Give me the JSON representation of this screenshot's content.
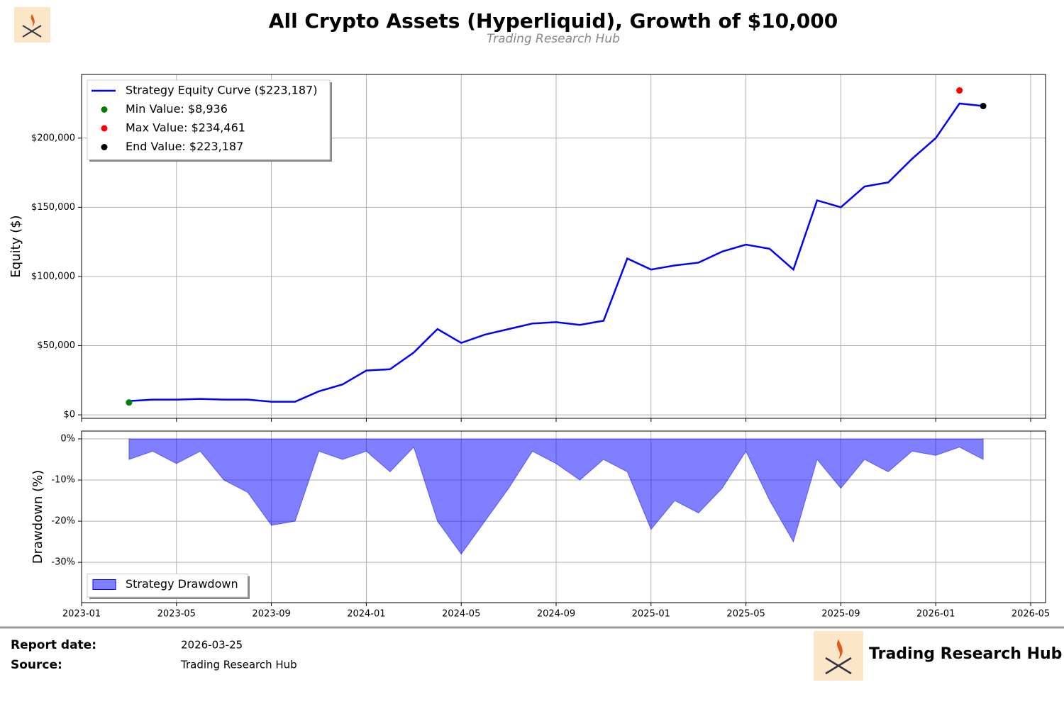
{
  "chart_data": [
    {
      "type": "line",
      "title": "All Crypto Assets (Hyperliquid), Growth of $10,000",
      "subtitle": "Trading Research Hub",
      "ylabel": "Equity ($)",
      "grid": true,
      "legend": "upper left",
      "x": [
        "2023-03",
        "2023-04",
        "2023-05",
        "2023-06",
        "2023-07",
        "2023-08",
        "2023-09",
        "2023-10",
        "2023-11",
        "2023-12",
        "2024-01",
        "2024-02",
        "2024-03",
        "2024-04",
        "2024-05",
        "2024-06",
        "2024-07",
        "2024-08",
        "2024-09",
        "2024-10",
        "2024-11",
        "2024-12",
        "2025-01",
        "2025-02",
        "2025-03",
        "2025-04",
        "2025-05",
        "2025-06",
        "2025-07",
        "2025-08",
        "2025-09",
        "2025-10",
        "2025-11",
        "2025-12",
        "2026-01",
        "2026-02",
        "2026-03"
      ],
      "series": [
        {
          "name": "Strategy Equity Curve ($223,187)",
          "type": "line",
          "color": "#0000ff",
          "values": [
            10000,
            11000,
            11000,
            11500,
            11000,
            11000,
            9500,
            9500,
            17000,
            22000,
            32000,
            33000,
            45000,
            62000,
            52000,
            58000,
            62000,
            66000,
            67000,
            65000,
            68000,
            113000,
            105000,
            108000,
            110000,
            118000,
            123000,
            120000,
            105000,
            155000,
            150000,
            165000,
            168000,
            185000,
            200000,
            225000,
            223187
          ]
        },
        {
          "name": "Min Value: $8,936",
          "type": "scatter",
          "color": "#008000",
          "x": [
            "2023-03"
          ],
          "values": [
            8936
          ]
        },
        {
          "name": "Max Value: $234,461",
          "type": "scatter",
          "color": "#ff0000",
          "x": [
            "2026-02"
          ],
          "values": [
            234461
          ]
        },
        {
          "name": "End Value: $223,187",
          "type": "scatter",
          "color": "#000000",
          "x": [
            "2026-03"
          ],
          "values": [
            223187
          ]
        }
      ],
      "xlim": [
        "2023-01",
        "2026-05"
      ],
      "xticks": [
        "2023-01",
        "2023-05",
        "2023-09",
        "2024-01",
        "2024-05",
        "2024-09",
        "2025-01",
        "2025-05",
        "2025-09",
        "2026-01",
        "2026-05"
      ],
      "ylim": [
        -2500,
        246000
      ],
      "yticks": [
        {
          "value": 0,
          "label": "$0"
        },
        {
          "value": 50000,
          "label": "$50,000"
        },
        {
          "value": 100000,
          "label": "$100,000"
        },
        {
          "value": 150000,
          "label": "$150,000"
        },
        {
          "value": 200000,
          "label": "$200,000"
        }
      ]
    },
    {
      "type": "area",
      "ylabel": "Drawdown (%)",
      "grid": true,
      "legend": "lower left",
      "x": [
        "2023-03",
        "2023-04",
        "2023-05",
        "2023-06",
        "2023-07",
        "2023-08",
        "2023-09",
        "2023-10",
        "2023-11",
        "2023-12",
        "2024-01",
        "2024-02",
        "2024-03",
        "2024-04",
        "2024-05",
        "2024-06",
        "2024-07",
        "2024-08",
        "2024-09",
        "2024-10",
        "2024-11",
        "2024-12",
        "2025-01",
        "2025-02",
        "2025-03",
        "2025-04",
        "2025-05",
        "2025-06",
        "2025-07",
        "2025-08",
        "2025-09",
        "2025-10",
        "2025-11",
        "2025-12",
        "2026-01",
        "2026-02",
        "2026-03"
      ],
      "series": [
        {
          "name": "Strategy Drawdown",
          "color": "#0000ff",
          "opacity": 0.5,
          "values": [
            -5,
            -3,
            -6,
            -3,
            -10,
            -13,
            -21,
            -20,
            -3,
            -5,
            -3,
            -8,
            -2,
            -20,
            -28,
            -20,
            -12,
            -3,
            -6,
            -10,
            -5,
            -8,
            -22,
            -15,
            -18,
            -12,
            -3,
            -15,
            -25,
            -5,
            -12,
            -5,
            -8,
            -3,
            -4,
            -2,
            -5
          ]
        }
      ],
      "xlim": [
        "2023-01",
        "2026-05"
      ],
      "xticks": [
        "2023-01",
        "2023-05",
        "2023-09",
        "2024-01",
        "2024-05",
        "2024-09",
        "2025-01",
        "2025-05",
        "2025-09",
        "2026-01",
        "2026-05"
      ],
      "ylim": [
        -39.8,
        1.9
      ],
      "yticks": [
        {
          "value": 0,
          "label": "0%"
        },
        {
          "value": -10,
          "label": "-10%"
        },
        {
          "value": -20,
          "label": "-20%"
        },
        {
          "value": -30,
          "label": "-30%"
        }
      ]
    }
  ],
  "footer": {
    "report_date_label": "Report date:",
    "report_date": "2026-03-25",
    "source_label": "Source:",
    "source": "Trading Research Hub",
    "brand": "Trading Research Hub"
  }
}
